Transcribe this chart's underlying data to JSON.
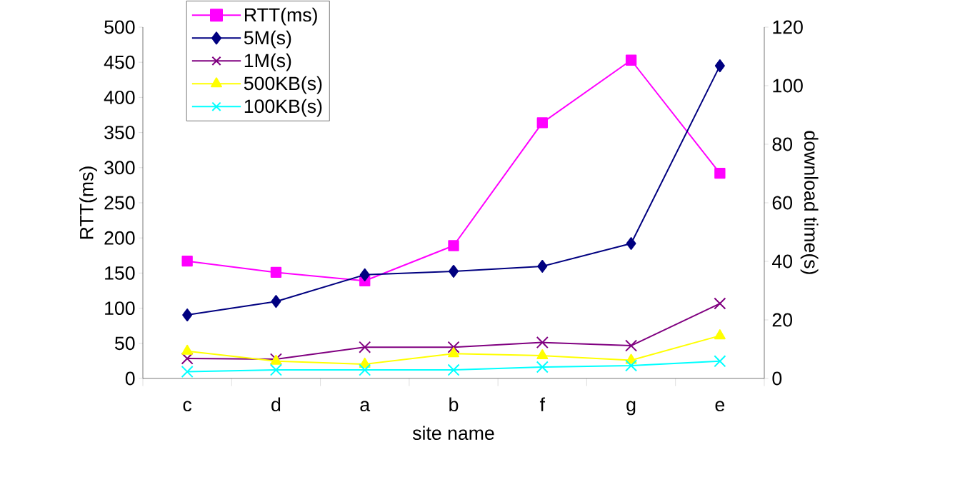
{
  "chart_data": {
    "type": "line",
    "xlabel": "site name",
    "ylabel": "RTT(ms)",
    "y2label": "download time(s)",
    "categories": [
      "c",
      "d",
      "a",
      "b",
      "f",
      "g",
      "e"
    ],
    "ylim": [
      0,
      500
    ],
    "yticks": [
      0,
      50,
      100,
      150,
      200,
      250,
      300,
      350,
      400,
      450,
      500
    ],
    "y2lim": [
      0,
      120
    ],
    "y2ticks": [
      0,
      20,
      40,
      60,
      80,
      100,
      120
    ],
    "legend": "top left",
    "grid": false,
    "series": [
      {
        "name": "RTT(ms)",
        "color": "#ff00ff",
        "marker": "square",
        "values": [
          167,
          151,
          139,
          189,
          364,
          453,
          292
        ]
      },
      {
        "name": "5M(s)",
        "color": "#000080",
        "marker": "diamond",
        "axis": "y2",
        "values": [
          21.7,
          26.3,
          35.4,
          36.6,
          38.3,
          46.1,
          106.8
        ]
      },
      {
        "name": "1M(s)",
        "color": "#800080",
        "marker": "cross",
        "axis": "y2",
        "values": [
          6.8,
          6.6,
          10.7,
          10.7,
          12.3,
          11.2,
          25.6
        ]
      },
      {
        "name": "500KB(s)",
        "color": "#ffff00",
        "marker": "triangle",
        "axis": "y2",
        "values": [
          9.3,
          5.9,
          4.9,
          8.5,
          7.8,
          6.2,
          14.6
        ]
      },
      {
        "name": "100KB(s)",
        "color": "#00ffff",
        "marker": "cross",
        "axis": "y2",
        "values": [
          2.3,
          2.9,
          2.9,
          2.9,
          3.9,
          4.4,
          5.9
        ]
      }
    ]
  }
}
